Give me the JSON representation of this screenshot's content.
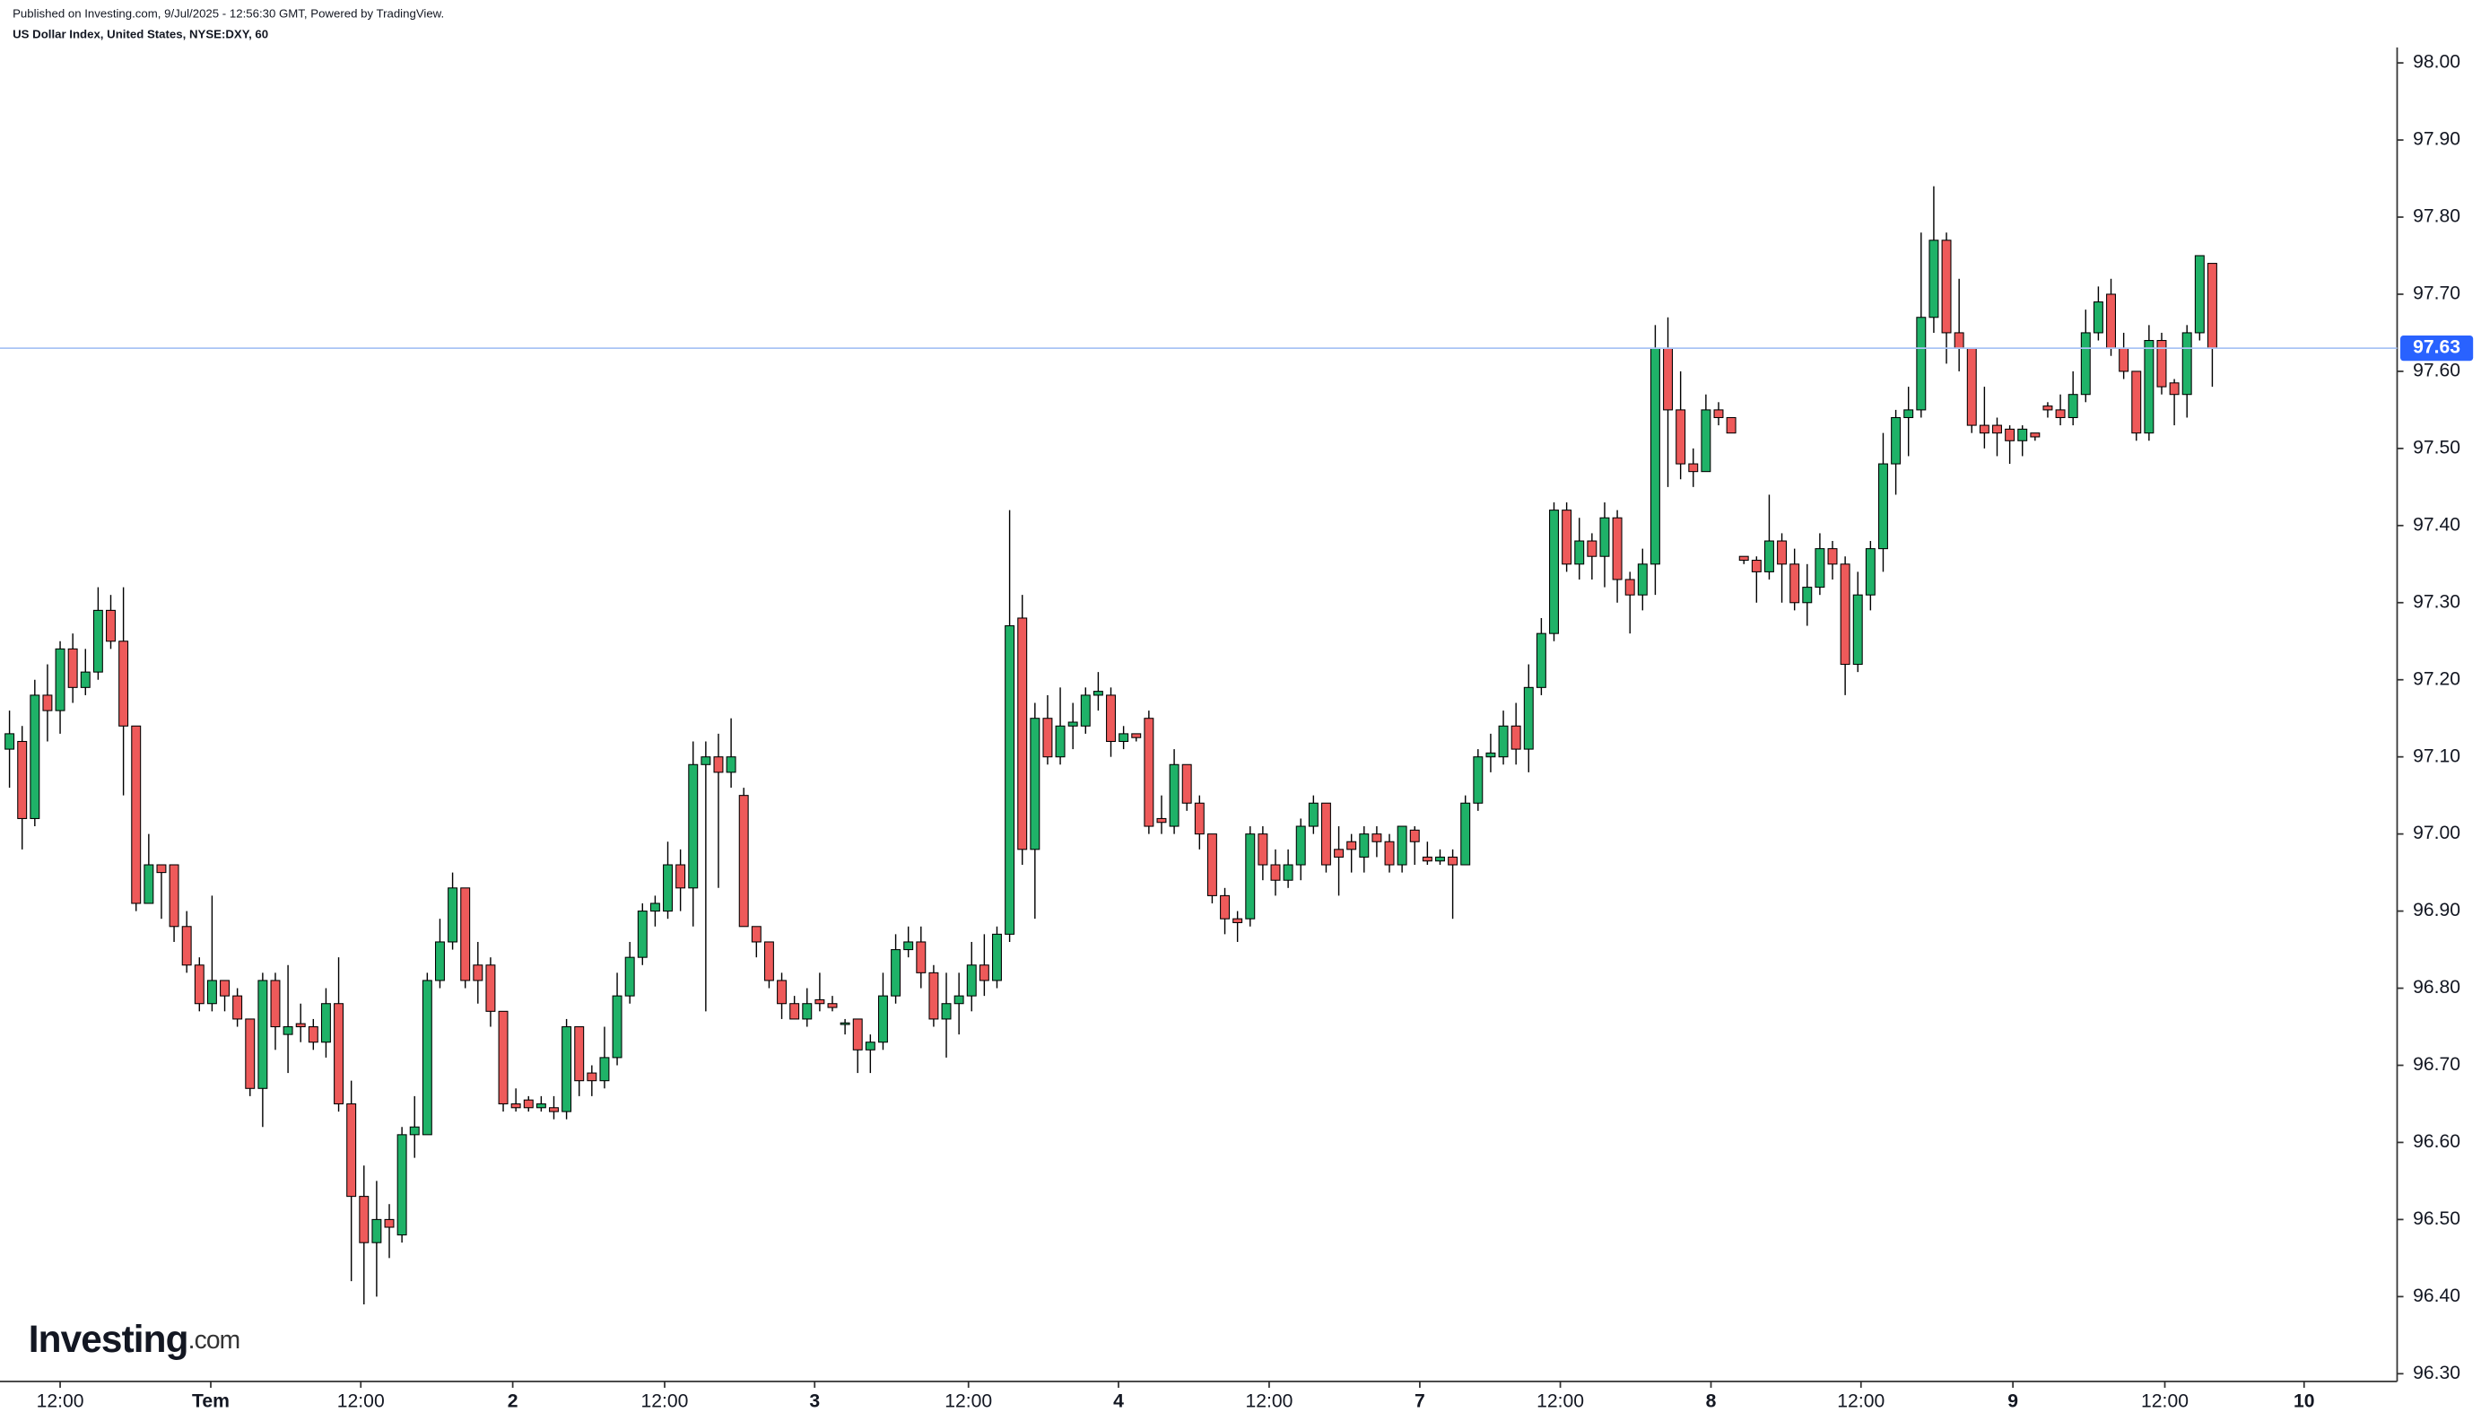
{
  "chart_data": {
    "type": "candlestick",
    "published": "Published on Investing.com, 9/Jul/2025 - 12:56:30 GMT, Powered by TradingView.",
    "title": "US Dollar Index, United States, NYSE:DXY, 60",
    "logo": {
      "name": "Investing",
      "suffix": ".com"
    },
    "up_color": "#1fb268",
    "down_color": "#ee5a5a",
    "border_color": "#000000",
    "price_line_color": "#a9c4f5",
    "price_label_color": "#2962ff",
    "last_price": 97.63,
    "ylim": [
      96.29,
      98.02
    ],
    "yticks": [
      {
        "value": 96.3,
        "label": "96.30"
      },
      {
        "value": 96.4,
        "label": "96.40"
      },
      {
        "value": 96.5,
        "label": "96.50"
      },
      {
        "value": 96.6,
        "label": "96.60"
      },
      {
        "value": 96.7,
        "label": "96.70"
      },
      {
        "value": 96.8,
        "label": "96.80"
      },
      {
        "value": 96.9,
        "label": "96.90"
      },
      {
        "value": 97.0,
        "label": "97.00"
      },
      {
        "value": 97.1,
        "label": "97.10"
      },
      {
        "value": 97.2,
        "label": "97.20"
      },
      {
        "value": 97.3,
        "label": "97.30"
      },
      {
        "value": 97.4,
        "label": "97.40"
      },
      {
        "value": 97.5,
        "label": "97.50"
      },
      {
        "value": 97.6,
        "label": "97.60"
      },
      {
        "value": 97.7,
        "label": "97.70"
      },
      {
        "value": 97.8,
        "label": "97.80"
      },
      {
        "value": 97.9,
        "label": "97.90"
      },
      {
        "value": 98.0,
        "label": "98.00"
      }
    ],
    "xlim": [
      -0.75,
      188.6
    ],
    "xticks": [
      {
        "value": 4,
        "label": "12:00"
      },
      {
        "value": 15.9,
        "label": "Tem"
      },
      {
        "value": 27.75,
        "label": "12:00"
      },
      {
        "value": 39.75,
        "label": "2"
      },
      {
        "value": 51.75,
        "label": "12:00"
      },
      {
        "value": 63.6,
        "label": "3"
      },
      {
        "value": 75.75,
        "label": "12:00"
      },
      {
        "value": 87.6,
        "label": "4"
      },
      {
        "value": 99.5,
        "label": "12:00"
      },
      {
        "value": 111.4,
        "label": "7"
      },
      {
        "value": 122.5,
        "label": "12:00"
      },
      {
        "value": 134.4,
        "label": "8"
      },
      {
        "value": 146.25,
        "label": "12:00"
      },
      {
        "value": 158.25,
        "label": "9"
      },
      {
        "value": 170.25,
        "label": "12:00"
      },
      {
        "value": 181.25,
        "label": "10"
      }
    ],
    "open": [
      97.11,
      97.12,
      97.02,
      97.18,
      97.16,
      97.24,
      97.19,
      97.21,
      97.29,
      97.25,
      97.14,
      96.91,
      96.96,
      96.96,
      96.88,
      96.83,
      96.78,
      96.81,
      96.79,
      96.76,
      96.67,
      96.81,
      96.74,
      96.754,
      96.75,
      96.73,
      96.78,
      96.65,
      96.53,
      96.47,
      96.5,
      96.48,
      96.61,
      96.61,
      96.81,
      96.86,
      96.93,
      96.83,
      96.83,
      96.77,
      96.65,
      96.655,
      96.645,
      96.645,
      96.64,
      96.75,
      96.69,
      96.68,
      96.71,
      96.79,
      96.84,
      96.9,
      96.9,
      96.96,
      96.93,
      97.09,
      97.1,
      97.08,
      97.05,
      96.88,
      96.86,
      96.81,
      96.78,
      96.76,
      96.785,
      96.78,
      96.755,
      96.76,
      96.72,
      96.73,
      96.79,
      96.85,
      96.86,
      96.82,
      96.76,
      96.78,
      96.79,
      96.83,
      96.81,
      96.87,
      97.28,
      96.98,
      97.15,
      97.1,
      97.14,
      97.14,
      97.18,
      97.18,
      97.12,
      97.13,
      97.15,
      97.02,
      97.01,
      97.09,
      97.04,
      97.0,
      96.92,
      96.89,
      96.89,
      97.0,
      96.96,
      96.94,
      96.96,
      97.01,
      97.04,
      96.98,
      96.99,
      96.97,
      97.0,
      96.99,
      96.96,
      97.005,
      96.97,
      96.965,
      96.97,
      96.96,
      97.04,
      97.1,
      97.1,
      97.14,
      97.11,
      97.19,
      97.26,
      97.42,
      97.35,
      97.38,
      97.36,
      97.41,
      97.33,
      97.31,
      97.35,
      97.63,
      97.55,
      97.48,
      97.47,
      97.55,
      97.54,
      97.36,
      97.355,
      97.34,
      97.38,
      97.35,
      97.3,
      97.32,
      97.37,
      97.35,
      97.22,
      97.31,
      97.37,
      97.48,
      97.54,
      97.55,
      97.67,
      97.77,
      97.65,
      97.63,
      97.53,
      97.53,
      97.525,
      97.51,
      97.52,
      97.555,
      97.55,
      97.54,
      97.57,
      97.65,
      97.7,
      97.63,
      97.6,
      97.52,
      97.64,
      97.585,
      97.57,
      97.65,
      97.74
    ],
    "high": [
      97.16,
      97.14,
      97.2,
      97.22,
      97.25,
      97.26,
      97.24,
      97.32,
      97.31,
      97.32,
      97.14,
      97.0,
      96.96,
      96.96,
      96.9,
      96.84,
      96.92,
      96.81,
      96.8,
      96.76,
      96.82,
      96.82,
      96.83,
      96.78,
      96.76,
      96.8,
      96.84,
      96.68,
      96.57,
      96.55,
      96.52,
      96.62,
      96.66,
      96.82,
      96.89,
      96.95,
      96.93,
      96.86,
      96.84,
      96.77,
      96.67,
      96.66,
      96.66,
      96.66,
      96.76,
      96.75,
      96.7,
      96.75,
      96.82,
      96.86,
      96.91,
      96.92,
      96.99,
      96.98,
      97.12,
      97.12,
      97.13,
      97.15,
      97.06,
      96.88,
      96.86,
      96.82,
      96.79,
      96.8,
      96.82,
      96.79,
      96.76,
      96.76,
      96.74,
      96.82,
      96.87,
      96.88,
      96.88,
      96.83,
      96.82,
      96.82,
      96.86,
      96.87,
      96.88,
      97.42,
      97.31,
      97.17,
      97.18,
      97.19,
      97.17,
      97.19,
      97.21,
      97.19,
      97.14,
      97.13,
      97.16,
      97.05,
      97.11,
      97.09,
      97.05,
      97.0,
      96.93,
      96.9,
      97.01,
      97.01,
      96.98,
      96.98,
      97.02,
      97.05,
      97.04,
      97.01,
      97.0,
      97.01,
      97.01,
      97.0,
      97.01,
      97.01,
      96.99,
      96.98,
      96.98,
      97.05,
      97.11,
      97.13,
      97.16,
      97.17,
      97.22,
      97.28,
      97.43,
      97.43,
      97.41,
      97.39,
      97.43,
      97.42,
      97.34,
      97.37,
      97.66,
      97.67,
      97.6,
      97.5,
      97.57,
      97.56,
      97.54,
      97.36,
      97.36,
      97.44,
      97.39,
      97.37,
      97.35,
      97.39,
      97.38,
      97.36,
      97.34,
      97.38,
      97.52,
      97.55,
      97.58,
      97.78,
      97.84,
      97.78,
      97.72,
      97.63,
      97.58,
      97.54,
      97.53,
      97.53,
      97.52,
      97.56,
      97.57,
      97.6,
      97.68,
      97.71,
      97.72,
      97.65,
      97.6,
      97.66,
      97.65,
      97.59,
      97.66,
      97.75,
      97.74
    ],
    "low": [
      97.06,
      96.98,
      97.01,
      97.12,
      97.13,
      97.17,
      97.18,
      97.2,
      97.24,
      97.05,
      96.9,
      96.91,
      96.89,
      96.86,
      96.82,
      96.77,
      96.77,
      96.77,
      96.75,
      96.66,
      96.62,
      96.72,
      96.69,
      96.73,
      96.72,
      96.71,
      96.64,
      96.42,
      96.39,
      96.4,
      96.45,
      96.47,
      96.58,
      96.61,
      96.8,
      96.85,
      96.8,
      96.78,
      96.75,
      96.64,
      96.64,
      96.64,
      96.64,
      96.63,
      96.63,
      96.66,
      96.66,
      96.67,
      96.7,
      96.78,
      96.83,
      96.88,
      96.89,
      96.9,
      96.88,
      96.77,
      96.93,
      97.06,
      96.88,
      96.84,
      96.8,
      96.76,
      96.76,
      96.75,
      96.77,
      96.77,
      96.74,
      96.69,
      96.69,
      96.72,
      96.78,
      96.84,
      96.8,
      96.75,
      96.71,
      96.74,
      96.77,
      96.79,
      96.8,
      96.86,
      96.96,
      96.89,
      97.09,
      97.09,
      97.11,
      97.13,
      97.16,
      97.1,
      97.11,
      97.12,
      97.0,
      97.0,
      97.0,
      97.03,
      96.98,
      96.91,
      96.87,
      96.86,
      96.88,
      96.94,
      96.92,
      96.93,
      96.94,
      97.0,
      96.95,
      96.92,
      96.95,
      96.95,
      96.97,
      96.95,
      96.95,
      96.96,
      96.96,
      96.96,
      96.89,
      96.96,
      97.03,
      97.08,
      97.09,
      97.09,
      97.08,
      97.18,
      97.25,
      97.34,
      97.33,
      97.33,
      97.32,
      97.3,
      97.26,
      97.29,
      97.31,
      97.45,
      97.46,
      97.45,
      97.47,
      97.53,
      97.52,
      97.35,
      97.3,
      97.33,
      97.3,
      97.29,
      97.27,
      97.31,
      97.33,
      97.18,
      97.21,
      97.29,
      97.34,
      97.44,
      97.49,
      97.54,
      97.65,
      97.61,
      97.6,
      97.52,
      97.5,
      97.49,
      97.48,
      97.49,
      97.51,
      97.54,
      97.53,
      97.53,
      97.56,
      97.64,
      97.62,
      97.59,
      97.51,
      97.51,
      97.57,
      97.53,
      97.54,
      97.64,
      97.58
    ],
    "close": [
      97.13,
      97.02,
      97.18,
      97.16,
      97.24,
      97.19,
      97.21,
      97.29,
      97.25,
      97.14,
      96.91,
      96.96,
      96.95,
      96.88,
      96.83,
      96.78,
      96.81,
      96.79,
      96.76,
      96.67,
      96.81,
      96.75,
      96.75,
      96.75,
      96.73,
      96.78,
      96.65,
      96.53,
      96.47,
      96.5,
      96.49,
      96.61,
      96.62,
      96.81,
      96.86,
      96.93,
      96.81,
      96.81,
      96.77,
      96.65,
      96.645,
      96.645,
      96.65,
      96.64,
      96.75,
      96.68,
      96.68,
      96.71,
      96.79,
      96.84,
      96.9,
      96.91,
      96.96,
      96.93,
      97.09,
      97.1,
      97.08,
      97.1,
      96.88,
      96.86,
      96.81,
      96.78,
      96.76,
      96.78,
      96.78,
      96.775,
      96.755,
      96.72,
      96.73,
      96.79,
      96.85,
      96.86,
      96.82,
      96.76,
      96.78,
      96.79,
      96.83,
      96.81,
      96.87,
      97.27,
      96.98,
      97.15,
      97.1,
      97.14,
      97.145,
      97.18,
      97.185,
      97.12,
      97.13,
      97.125,
      97.01,
      97.015,
      97.09,
      97.04,
      97.0,
      96.92,
      96.89,
      96.885,
      97.0,
      96.96,
      96.94,
      96.96,
      97.01,
      97.04,
      96.96,
      96.97,
      96.98,
      97.0,
      96.99,
      96.96,
      97.01,
      96.99,
      96.965,
      96.97,
      96.96,
      97.04,
      97.1,
      97.105,
      97.14,
      97.11,
      97.19,
      97.26,
      97.42,
      97.35,
      97.38,
      97.36,
      97.41,
      97.33,
      97.31,
      97.35,
      97.63,
      97.55,
      97.48,
      97.47,
      97.55,
      97.54,
      97.52,
      97.355,
      97.34,
      97.38,
      97.35,
      97.3,
      97.32,
      97.37,
      97.35,
      97.22,
      97.31,
      97.37,
      97.48,
      97.54,
      97.55,
      97.67,
      97.77,
      97.65,
      97.63,
      97.53,
      97.52,
      97.52,
      97.51,
      97.525,
      97.515,
      97.55,
      97.54,
      97.57,
      97.65,
      97.69,
      97.63,
      97.6,
      97.52,
      97.64,
      97.58,
      97.57,
      97.65,
      97.75,
      97.63
    ]
  }
}
